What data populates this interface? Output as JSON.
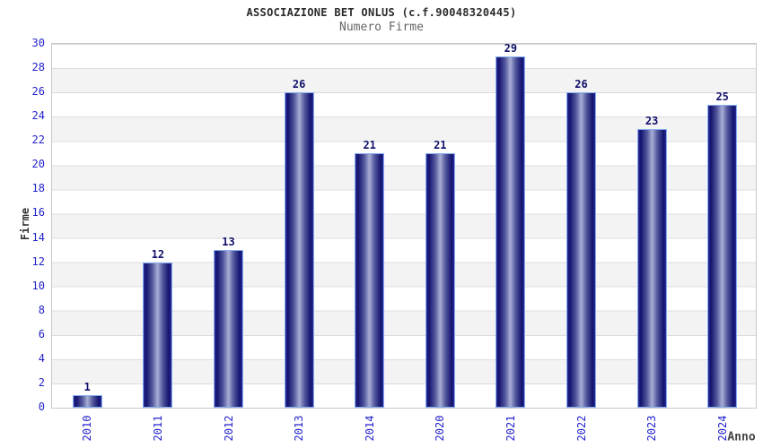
{
  "header": {
    "title": "ASSOCIAZIONE BET ONLUS (c.f.90048320445)",
    "subtitle": "Numero Firme"
  },
  "chart_data": {
    "type": "bar",
    "title": "ASSOCIAZIONE BET ONLUS (c.f.90048320445)",
    "subtitle": "Numero Firme",
    "categories": [
      "2010",
      "2011",
      "2012",
      "2013",
      "2014",
      "2020",
      "2021",
      "2022",
      "2023",
      "2024"
    ],
    "values": [
      1,
      12,
      13,
      26,
      21,
      21,
      29,
      26,
      23,
      25
    ],
    "xlabel": "Anno",
    "ylabel": "Firme",
    "ylim": [
      0,
      30
    ],
    "ytick_step": 2,
    "yticks": [
      0,
      2,
      4,
      6,
      8,
      10,
      12,
      14,
      16,
      18,
      20,
      22,
      24,
      26,
      28,
      30
    ],
    "grid": true,
    "legend": "none",
    "bar_value_labels_shown": true
  },
  "colors": {
    "title_text": "#2b2b2b",
    "subtitle_text": "#666666",
    "axis_tick_text": "#2323cc",
    "bar_value_text": "#10106a",
    "axis_name_text": "#333333",
    "bar_dark": "#13136e",
    "bar_light": "#a9aed6",
    "bar_border": "#85aef0",
    "gridline": "#dcdcdc",
    "band_alt": "#f3f3f3",
    "plot_border": "#c8c8c8",
    "background": "#ffffff"
  }
}
